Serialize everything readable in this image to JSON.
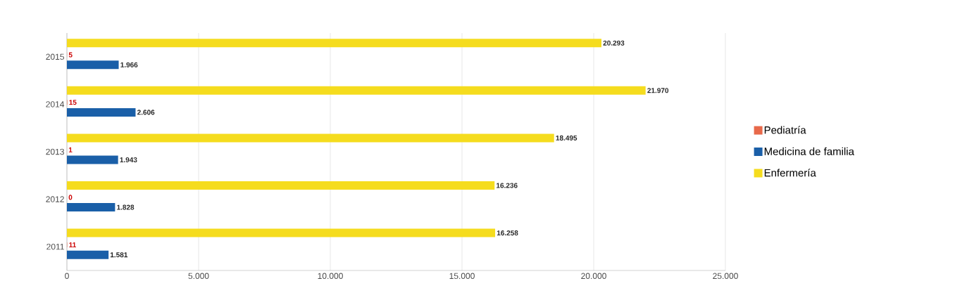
{
  "chart_data": {
    "type": "bar",
    "orientation": "horizontal",
    "categories": [
      "2015",
      "2014",
      "2013",
      "2012",
      "2011"
    ],
    "series": [
      {
        "name": "Pediatría",
        "color": "#e8694a",
        "values": [
          5,
          15,
          1,
          0,
          11
        ],
        "value_labels": [
          "5",
          "15",
          "1",
          "0",
          "11"
        ]
      },
      {
        "name": "Medicina de familia",
        "color": "#1a5fa8",
        "values": [
          1966,
          2606,
          1943,
          1828,
          1581
        ],
        "value_labels": [
          "1.966",
          "2.606",
          "1.943",
          "1.828",
          "1.581"
        ]
      },
      {
        "name": "Enfermería",
        "color": "#f5dc1e",
        "values": [
          20293,
          21970,
          18495,
          16236,
          16258
        ],
        "value_labels": [
          "20.293",
          "21.970",
          "18.495",
          "16.236",
          "16.258"
        ]
      }
    ],
    "xlim": [
      0,
      25000
    ],
    "xticks": [
      0,
      {
        "value": 5000,
        "label": "5.000"
      },
      {
        "value": 10000,
        "label": "10.000"
      },
      {
        "value": 15000,
        "label": "15.000"
      },
      {
        "value": 20000,
        "label": "20.000"
      },
      {
        "value": 25000,
        "label": "25.000"
      }
    ],
    "grid": "x",
    "legend": "right"
  }
}
